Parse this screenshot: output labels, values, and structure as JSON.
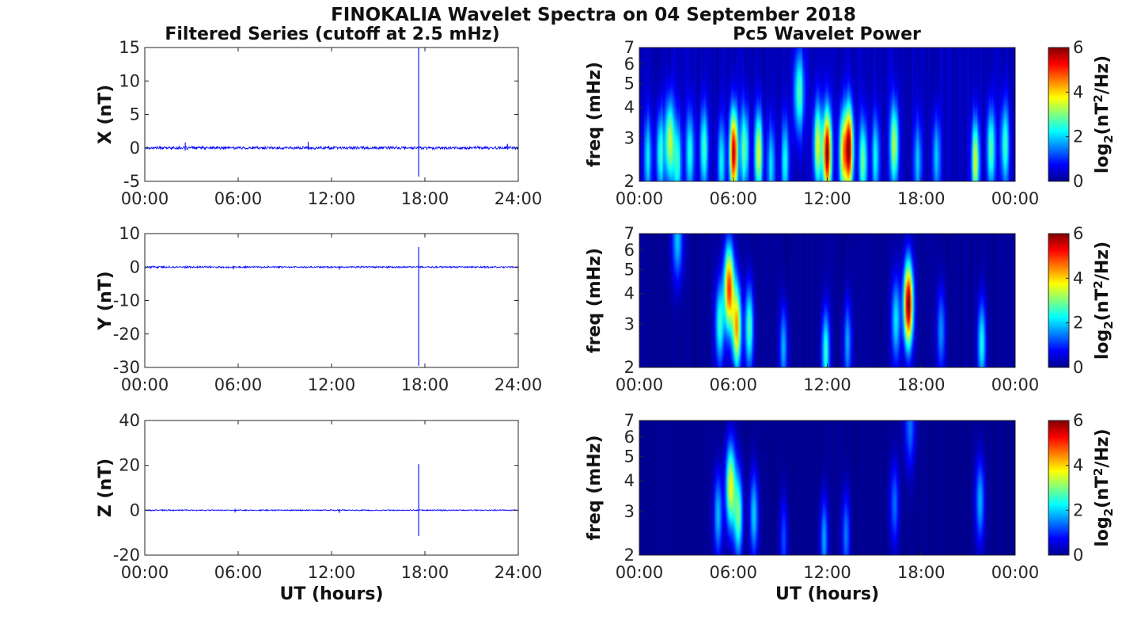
{
  "figure": {
    "title": "FINOKALIA Wavelet Spectra on 04 September 2018",
    "left_column_title": "Filtered Series (cutoff at 2.5 mHz)",
    "right_column_title": "Pc5 Wavelet Power"
  },
  "chart_data": [
    {
      "type": "line",
      "component": "X",
      "ylabel": "X (nT)",
      "xlabel": "",
      "x_unit": "hours UT",
      "xlim": [
        0,
        24
      ],
      "ylim": [
        -5,
        15
      ],
      "x_ticks": [
        "00:00",
        "06:00",
        "12:00",
        "18:00",
        "24:00"
      ],
      "y_ticks": [
        "-5",
        "0",
        "5",
        "10",
        "15"
      ],
      "series_color": "#0000ff",
      "noise_amplitude_nT": 0.25,
      "spikes": [
        {
          "x": 2.6,
          "min": -0.4,
          "max": 0.8
        },
        {
          "x": 10.5,
          "min": -0.3,
          "max": 0.9
        },
        {
          "x": 17.6,
          "min": -4.3,
          "max": 15.0
        },
        {
          "x": 23.3,
          "min": -0.2,
          "max": 0.6
        }
      ]
    },
    {
      "type": "line",
      "component": "Y",
      "ylabel": "Y (nT)",
      "xlabel": "",
      "x_unit": "hours UT",
      "xlim": [
        0,
        24
      ],
      "ylim": [
        -30,
        10
      ],
      "x_ticks": [
        "00:00",
        "06:00",
        "12:00",
        "18:00",
        "24:00"
      ],
      "y_ticks": [
        "-30",
        "-20",
        "-10",
        "0",
        "10"
      ],
      "series_color": "#0000ff",
      "noise_amplitude_nT": 0.3,
      "spikes": [
        {
          "x": 5.7,
          "min": -0.7,
          "max": 0.4
        },
        {
          "x": 12.5,
          "min": -0.8,
          "max": 0.3
        },
        {
          "x": 17.6,
          "min": -29.5,
          "max": 6.0
        }
      ]
    },
    {
      "type": "line",
      "component": "Z",
      "ylabel": "Z (nT)",
      "xlabel": "UT (hours)",
      "x_unit": "hours UT",
      "xlim": [
        0,
        24
      ],
      "ylim": [
        -20,
        40
      ],
      "x_ticks": [
        "00:00",
        "06:00",
        "12:00",
        "18:00",
        "24:00"
      ],
      "y_ticks": [
        "-20",
        "0",
        "20",
        "40"
      ],
      "series_color": "#0000ff",
      "noise_amplitude_nT": 0.3,
      "spikes": [
        {
          "x": 5.8,
          "min": -1.0,
          "max": 0.7
        },
        {
          "x": 12.5,
          "min": -1.2,
          "max": 0.5
        },
        {
          "x": 17.6,
          "min": -11.5,
          "max": 20.5
        }
      ]
    },
    {
      "type": "heatmap",
      "component": "X",
      "ylabel": "freq (mHz)",
      "xlabel": "",
      "xlim": [
        0,
        24
      ],
      "ylim": [
        2,
        7
      ],
      "y_scale": "log",
      "x_ticks": [
        "00:00",
        "06:00",
        "12:00",
        "18:00",
        "00:00"
      ],
      "y_ticks": [
        "2",
        "3",
        "4",
        "5",
        "6",
        "7"
      ],
      "colorbar_label": "log2(nT^2/Hz)",
      "colorbar_ticks": [
        "0",
        "2",
        "4",
        "6"
      ],
      "zlim": [
        0,
        6
      ],
      "colormap": "jet",
      "background_level": 0.35,
      "blobs": [
        {
          "t": 0.5,
          "f": 2.5,
          "power": 1.8
        },
        {
          "t": 1.3,
          "f": 2.6,
          "power": 2.3
        },
        {
          "t": 1.9,
          "f": 2.9,
          "power": 3.2
        },
        {
          "t": 2.4,
          "f": 2.4,
          "power": 2.2
        },
        {
          "t": 3.2,
          "f": 2.6,
          "power": 2.1
        },
        {
          "t": 4.1,
          "f": 2.7,
          "power": 2.3
        },
        {
          "t": 5.2,
          "f": 2.4,
          "power": 1.9
        },
        {
          "t": 6.0,
          "f": 2.6,
          "power": 5.4
        },
        {
          "t": 6.7,
          "f": 2.7,
          "power": 2.6
        },
        {
          "t": 7.6,
          "f": 2.6,
          "power": 3.3
        },
        {
          "t": 8.4,
          "f": 2.3,
          "power": 1.8
        },
        {
          "t": 9.3,
          "f": 2.4,
          "power": 2.0
        },
        {
          "t": 10.2,
          "f": 4.6,
          "power": 2.4
        },
        {
          "t": 11.4,
          "f": 2.8,
          "power": 3.2
        },
        {
          "t": 12.0,
          "f": 2.6,
          "power": 5.6
        },
        {
          "t": 13.0,
          "f": 2.6,
          "power": 3.3
        },
        {
          "t": 13.4,
          "f": 2.7,
          "power": 5.3
        },
        {
          "t": 14.3,
          "f": 2.4,
          "power": 2.6
        },
        {
          "t": 15.1,
          "f": 2.5,
          "power": 1.9
        },
        {
          "t": 16.3,
          "f": 2.8,
          "power": 3.0
        },
        {
          "t": 17.8,
          "f": 2.4,
          "power": 1.6
        },
        {
          "t": 19.0,
          "f": 2.5,
          "power": 1.7
        },
        {
          "t": 21.5,
          "f": 2.4,
          "power": 3.2
        },
        {
          "t": 22.5,
          "f": 2.7,
          "power": 2.5
        },
        {
          "t": 23.4,
          "f": 2.8,
          "power": 2.3
        }
      ]
    },
    {
      "type": "heatmap",
      "component": "Y",
      "ylabel": "freq (mHz)",
      "xlabel": "",
      "xlim": [
        0,
        24
      ],
      "ylim": [
        2,
        7
      ],
      "y_scale": "log",
      "x_ticks": [
        "00:00",
        "06:00",
        "12:00",
        "18:00",
        "00:00"
      ],
      "y_ticks": [
        "2",
        "3",
        "4",
        "5",
        "6",
        "7"
      ],
      "colorbar_label": "log2(nT^2/Hz)",
      "colorbar_ticks": [
        "0",
        "2",
        "4",
        "6"
      ],
      "zlim": [
        0,
        6
      ],
      "colormap": "jet",
      "background_level": 0.15,
      "blobs": [
        {
          "t": 2.4,
          "f": 6.7,
          "power": 1.8
        },
        {
          "t": 5.1,
          "f": 3.0,
          "power": 2.4
        },
        {
          "t": 5.7,
          "f": 4.2,
          "power": 4.8
        },
        {
          "t": 6.2,
          "f": 2.9,
          "power": 4.1
        },
        {
          "t": 7.0,
          "f": 2.9,
          "power": 2.6
        },
        {
          "t": 9.2,
          "f": 2.4,
          "power": 1.7
        },
        {
          "t": 11.9,
          "f": 2.3,
          "power": 2.4
        },
        {
          "t": 13.3,
          "f": 2.5,
          "power": 1.6
        },
        {
          "t": 16.4,
          "f": 3.1,
          "power": 2.0
        },
        {
          "t": 17.2,
          "f": 3.6,
          "power": 5.9
        },
        {
          "t": 19.3,
          "f": 2.8,
          "power": 1.5
        },
        {
          "t": 21.9,
          "f": 2.5,
          "power": 2.2
        }
      ]
    },
    {
      "type": "heatmap",
      "component": "Z",
      "ylabel": "freq (mHz)",
      "xlabel": "UT (hours)",
      "xlim": [
        0,
        24
      ],
      "ylim": [
        2,
        7
      ],
      "y_scale": "log",
      "x_ticks": [
        "00:00",
        "06:00",
        "12:00",
        "18:00",
        "00:00"
      ],
      "y_ticks": [
        "2",
        "3",
        "4",
        "5",
        "6",
        "7"
      ],
      "colorbar_label": "log2(nT^2/Hz)",
      "colorbar_ticks": [
        "0",
        "2",
        "4",
        "6"
      ],
      "zlim": [
        0,
        6
      ],
      "colormap": "jet",
      "background_level": 0.1,
      "blobs": [
        {
          "t": 5.0,
          "f": 2.9,
          "power": 1.8
        },
        {
          "t": 5.8,
          "f": 3.8,
          "power": 3.6
        },
        {
          "t": 6.3,
          "f": 2.9,
          "power": 2.7
        },
        {
          "t": 7.3,
          "f": 2.9,
          "power": 1.9
        },
        {
          "t": 9.2,
          "f": 2.3,
          "power": 1.1
        },
        {
          "t": 11.8,
          "f": 2.3,
          "power": 1.6
        },
        {
          "t": 13.2,
          "f": 2.4,
          "power": 1.4
        },
        {
          "t": 16.3,
          "f": 3.2,
          "power": 1.3
        },
        {
          "t": 17.3,
          "f": 6.7,
          "power": 1.3
        },
        {
          "t": 21.8,
          "f": 3.3,
          "power": 1.7
        }
      ]
    }
  ]
}
